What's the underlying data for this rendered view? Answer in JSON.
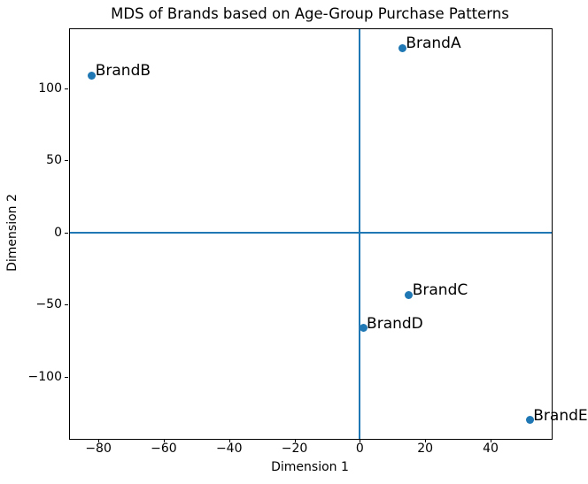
{
  "chart_data": {
    "type": "scatter",
    "title": "MDS of Brands based on Age-Group Purchase Patterns",
    "xlabel": "Dimension 1",
    "ylabel": "Dimension 2",
    "xlim": [
      -88.7,
      58.7
    ],
    "ylim": [
      -142.9,
      140.9
    ],
    "xticks": [
      -80,
      -60,
      -40,
      -20,
      0,
      20,
      40
    ],
    "yticks": [
      -100,
      -50,
      0,
      50,
      100
    ],
    "grid": false,
    "legend": null,
    "reference_lines": {
      "vertical_at_x": 0,
      "horizontal_at_y": 0
    },
    "colors": {
      "point": "#1f77b4",
      "reference_line": "#1f77b4",
      "spine": "#000000",
      "text": "#000000",
      "background": "#ffffff"
    },
    "series": [
      {
        "name": "brands",
        "points": [
          {
            "label": "BrandA",
            "x": 13,
            "y": 128
          },
          {
            "label": "BrandB",
            "x": -82,
            "y": 109
          },
          {
            "label": "BrandC",
            "x": 15,
            "y": -43
          },
          {
            "label": "BrandD",
            "x": 1,
            "y": -66
          },
          {
            "label": "BrandE",
            "x": 52,
            "y": -130
          }
        ]
      }
    ]
  }
}
